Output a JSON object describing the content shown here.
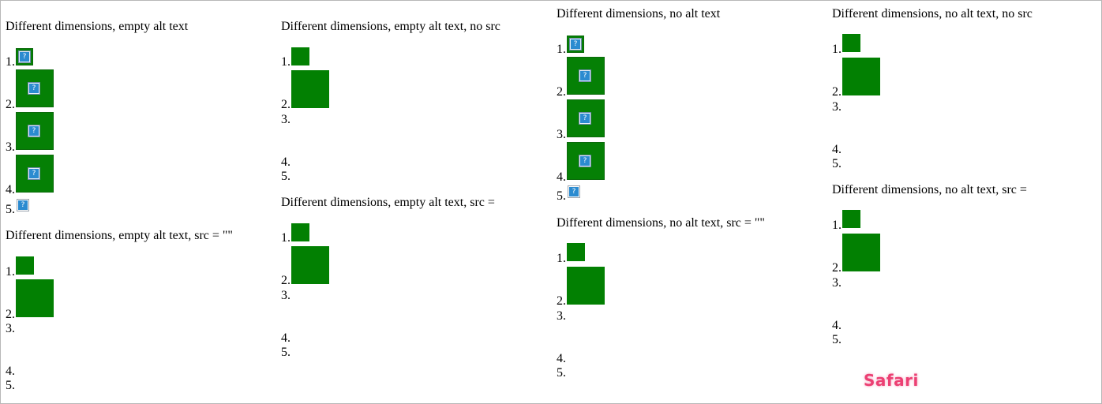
{
  "sections": {
    "c1a": {
      "title": "Different dimensions, empty alt text",
      "labels": [
        "1.",
        "2.",
        "3.",
        "4.",
        "5."
      ]
    },
    "c1b": {
      "title": "Different dimensions, empty alt text, src = \"\"",
      "labels": [
        "1.",
        "2.",
        "3.",
        "4.",
        "5."
      ]
    },
    "c2a": {
      "title": "Different dimensions, empty alt text, no src",
      "labels": [
        "1.",
        "2.",
        "3.",
        "4.",
        "5."
      ]
    },
    "c2b": {
      "title": "Different dimensions, empty alt text, src =",
      "labels": [
        "1.",
        "2.",
        "3.",
        "4.",
        "5."
      ]
    },
    "c3a": {
      "title": "Different dimensions, no alt text",
      "labels": [
        "1.",
        "2.",
        "3.",
        "4.",
        "5."
      ]
    },
    "c3b": {
      "title": "Different dimensions, no alt text, src = \"\"",
      "labels": [
        "1.",
        "2.",
        "3.",
        "4.",
        "5."
      ]
    },
    "c4a": {
      "title": "Different dimensions, no alt text, no src",
      "labels": [
        "1.",
        "2.",
        "3.",
        "4.",
        "5."
      ]
    },
    "c4b": {
      "title": "Different dimensions, no alt text, src =",
      "labels": [
        "1.",
        "2.",
        "3.",
        "4.",
        "5."
      ]
    }
  },
  "icon_glyph": "?",
  "icon": "broken-image-icon",
  "brand": {
    "label": "Safari",
    "color": "#ec3f73"
  },
  "colors": {
    "image_fill": "#028002",
    "icon_blue": "#2b8bd0"
  }
}
